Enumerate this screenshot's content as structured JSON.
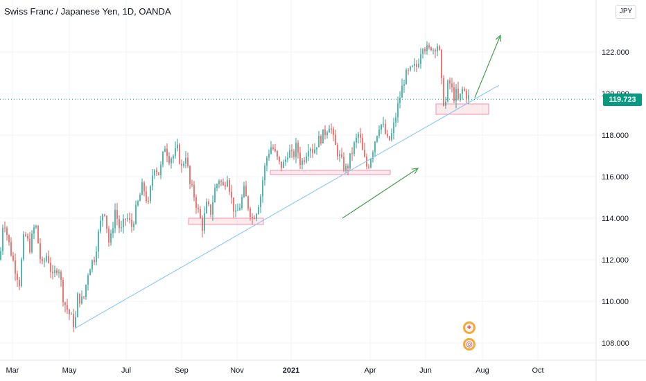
{
  "header": {
    "title": "Swiss Franc / Japanese Yen, 1D, OANDA",
    "currency": "JPY"
  },
  "price_badge": "119.723",
  "event_icons": [
    {
      "name": "dividend-plus-icon",
      "glyph": "+"
    },
    {
      "name": "event-target-icon",
      "glyph": "◎"
    }
  ],
  "colors": {
    "up": "#26a69a",
    "down": "#ef5350",
    "trendline": "#90caf9",
    "arrows": "#43a047",
    "zone_fill": "rgba(239,83,80,0.12)",
    "zone_stroke": "#f48fb1",
    "last_price": "#089981"
  },
  "chart_data": {
    "type": "candlestick",
    "title": "Swiss Franc / Japanese Yen, 1D, OANDA",
    "ylim": [
      107.3,
      124.8
    ],
    "y_ticks": [
      "108.000",
      "110.000",
      "112.000",
      "114.000",
      "116.000",
      "118.000",
      "120.000",
      "122.000"
    ],
    "x_ticks": [
      "Mar",
      "May",
      "Jul",
      "Sep",
      "Nov",
      "2021",
      "Apr",
      "Jun",
      "Aug",
      "Oct"
    ],
    "last_price": 119.723,
    "grid": true,
    "series_points": [
      [
        0,
        112.0
      ],
      [
        5,
        114.1
      ],
      [
        12,
        112.9
      ],
      [
        20,
        111.8
      ],
      [
        28,
        110.9
      ],
      [
        35,
        113.3
      ],
      [
        43,
        112.6
      ],
      [
        51,
        113.8
      ],
      [
        60,
        111.6
      ],
      [
        68,
        112.3
      ],
      [
        76,
        111.1
      ],
      [
        84,
        111.8
      ],
      [
        92,
        110.0
      ],
      [
        100,
        109.4
      ],
      [
        108,
        108.8
      ],
      [
        112,
        110.2
      ],
      [
        120,
        110.0
      ],
      [
        128,
        111.6
      ],
      [
        136,
        112.1
      ],
      [
        144,
        113.6
      ],
      [
        150,
        114.6
      ],
      [
        158,
        112.6
      ],
      [
        166,
        114.4
      ],
      [
        174,
        113.3
      ],
      [
        182,
        114.1
      ],
      [
        190,
        113.6
      ],
      [
        198,
        114.6
      ],
      [
        206,
        115.6
      ],
      [
        214,
        114.6
      ],
      [
        222,
        116.6
      ],
      [
        230,
        116.1
      ],
      [
        238,
        117.5
      ],
      [
        244,
        116.9
      ],
      [
        250,
        117.0
      ],
      [
        256,
        117.3
      ],
      [
        262,
        116.4
      ],
      [
        268,
        117.1
      ],
      [
        274,
        115.6
      ],
      [
        280,
        115.1
      ],
      [
        286,
        114.3
      ],
      [
        292,
        113.6
      ],
      [
        298,
        114.6
      ],
      [
        304,
        114.3
      ],
      [
        310,
        115.4
      ],
      [
        316,
        115.9
      ],
      [
        322,
        115.5
      ],
      [
        328,
        116.1
      ],
      [
        334,
        114.9
      ],
      [
        340,
        114.1
      ],
      [
        346,
        114.6
      ],
      [
        352,
        115.3
      ],
      [
        358,
        114.6
      ],
      [
        364,
        114.0
      ],
      [
        370,
        114.4
      ],
      [
        376,
        115.1
      ],
      [
        380,
        116.1
      ],
      [
        386,
        117.1
      ],
      [
        392,
        117.5
      ],
      [
        398,
        117.0
      ],
      [
        404,
        116.5
      ],
      [
        410,
        116.6
      ],
      [
        416,
        117.3
      ],
      [
        422,
        116.9
      ],
      [
        428,
        117.5
      ],
      [
        434,
        116.6
      ],
      [
        440,
        117.0
      ],
      [
        446,
        117.6
      ],
      [
        452,
        117.2
      ],
      [
        458,
        117.7
      ],
      [
        464,
        117.9
      ],
      [
        470,
        118.2
      ],
      [
        476,
        118.6
      ],
      [
        482,
        117.6
      ],
      [
        488,
        117.1
      ],
      [
        494,
        116.6
      ],
      [
        500,
        116.3
      ],
      [
        506,
        117.0
      ],
      [
        512,
        117.6
      ],
      [
        518,
        118.1
      ],
      [
        524,
        117.0
      ],
      [
        530,
        116.4
      ],
      [
        536,
        117.1
      ],
      [
        542,
        117.9
      ],
      [
        548,
        118.6
      ],
      [
        554,
        118.3
      ],
      [
        560,
        117.6
      ],
      [
        566,
        118.1
      ],
      [
        572,
        119.1
      ],
      [
        578,
        120.0
      ],
      [
        584,
        120.8
      ],
      [
        590,
        121.0
      ],
      [
        596,
        121.2
      ],
      [
        602,
        121.3
      ],
      [
        606,
        122.0
      ],
      [
        610,
        122.4
      ],
      [
        614,
        122.2
      ],
      [
        618,
        122.0
      ],
      [
        622,
        122.3
      ],
      [
        626,
        122.1
      ],
      [
        630,
        122.5
      ],
      [
        634,
        121.9
      ],
      [
        638,
        120.0
      ],
      [
        642,
        119.3
      ],
      [
        646,
        120.4
      ],
      [
        650,
        120.5
      ],
      [
        654,
        119.8
      ],
      [
        658,
        120.0
      ],
      [
        662,
        119.5
      ],
      [
        666,
        120.2
      ],
      [
        670,
        120.1
      ],
      [
        674,
        119.9
      ],
      [
        678,
        119.72
      ]
    ],
    "annotations": {
      "trendline": {
        "from": [
          108,
          108.7
        ],
        "to": [
          720,
          120.4
        ]
      },
      "support_zones": [
        {
          "x1": 272,
          "x2": 380,
          "y1": 113.7,
          "y2": 114.0
        },
        {
          "x1": 390,
          "x2": 563,
          "y1": 116.1,
          "y2": 116.3
        },
        {
          "x1": 629,
          "x2": 705,
          "y1": 119.0,
          "y2": 119.5
        }
      ],
      "arrows": [
        {
          "from": [
            494,
            114.0
          ],
          "to": [
            603,
            116.4
          ]
        },
        {
          "from": [
            685,
            119.8
          ],
          "to": [
            722,
            122.8
          ]
        }
      ]
    }
  }
}
